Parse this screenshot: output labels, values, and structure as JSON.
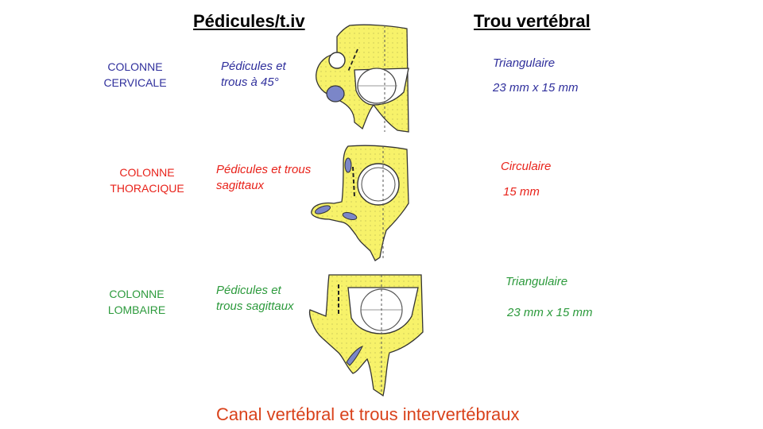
{
  "headers": {
    "left": "Pédicules/t.iv",
    "right": "Trou vertébral"
  },
  "colors": {
    "cervical": "#2f2f9c",
    "thoracic": "#e8221a",
    "lumbar": "#2c9a3c",
    "footer": "#d9421b",
    "bone": "#f7f26a",
    "foramen": "#7b86c8"
  },
  "rows": [
    {
      "region": "COLONNE\nCERVICALE",
      "pedicle_note": "Pédicules et\ntrous à 45°",
      "shape": "Triangulaire",
      "size": "23 mm x 15 mm"
    },
    {
      "region": "COLONNE\nTHORACIQUE",
      "pedicle_note": "Pédicules et trous\nsagittaux",
      "shape": "Circulaire",
      "size": "15 mm"
    },
    {
      "region": "COLONNE\nLOMBAIRE",
      "pedicle_note": "Pédicules et\ntrous sagittaux",
      "shape": "Triangulaire",
      "size": "23 mm x 15 mm"
    }
  ],
  "footer": "Canal vertébral et trous intervertébraux"
}
